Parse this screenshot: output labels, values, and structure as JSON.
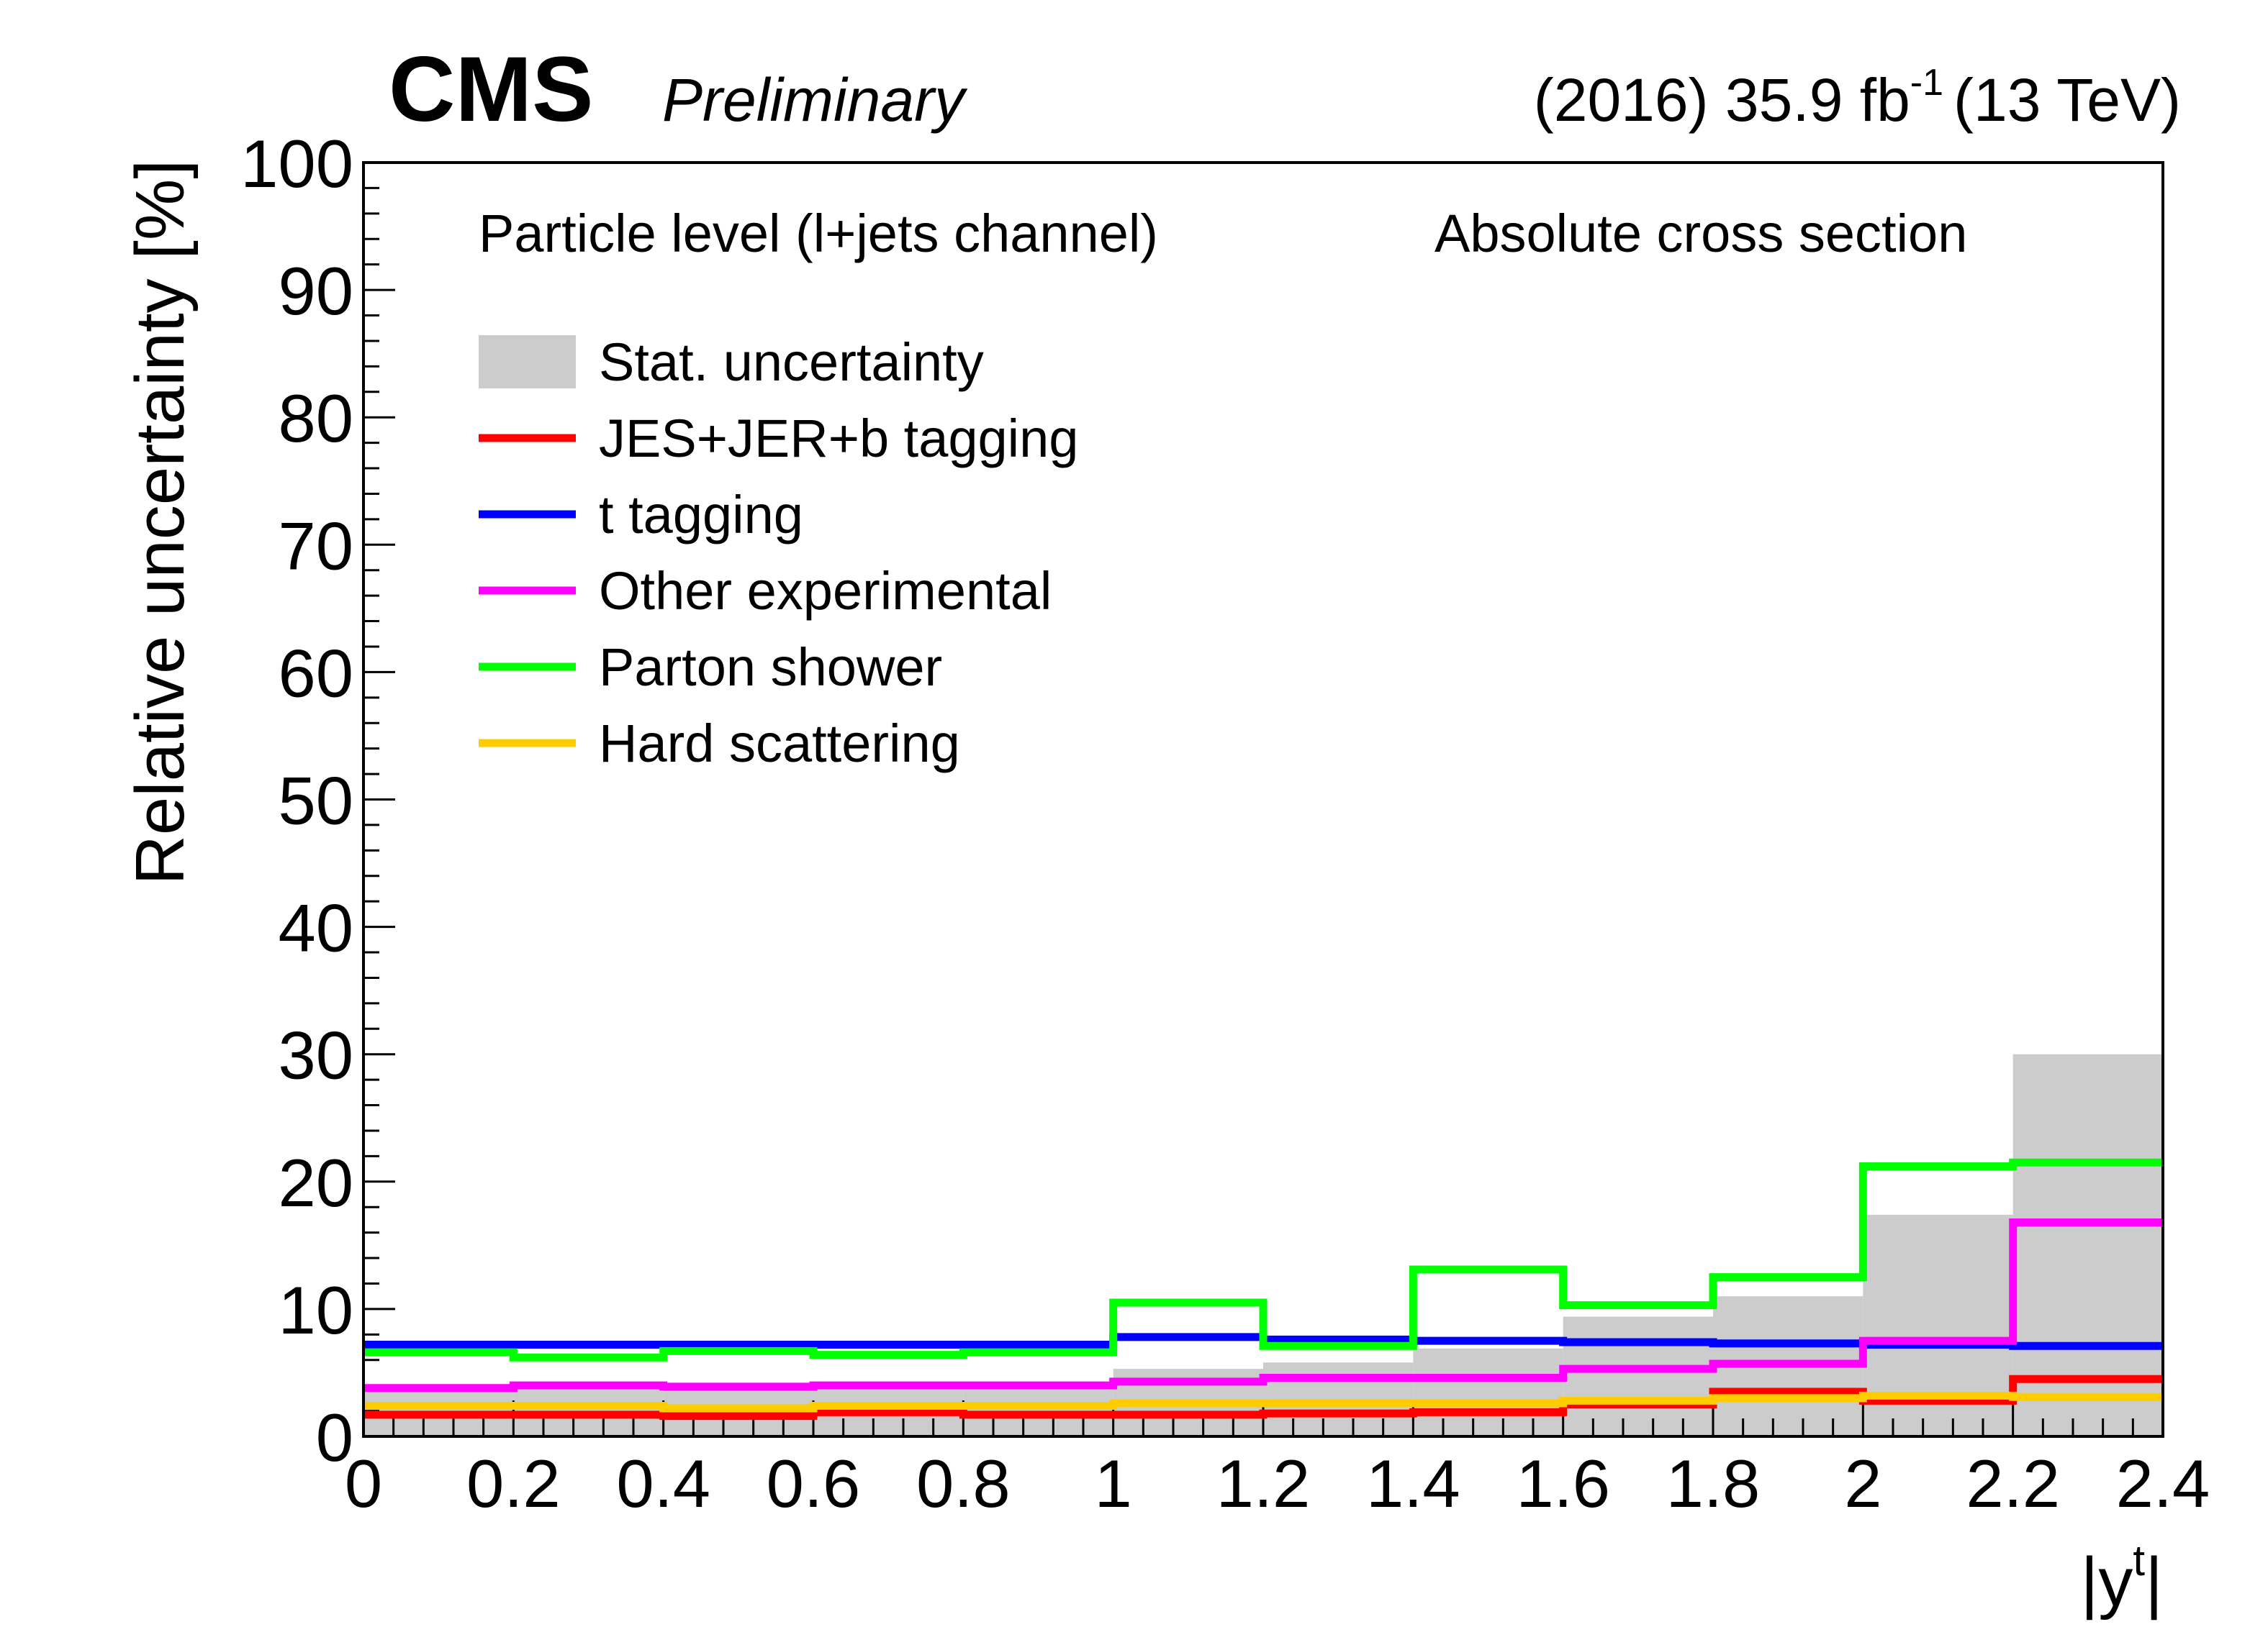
{
  "header": {
    "experiment": "CMS",
    "status": "Preliminary",
    "lumi_prefix": "(2016) 35.9 fb",
    "lumi_exp": "-1",
    "energy": "(13 TeV)"
  },
  "annotations": {
    "left": "Particle level (l+jets channel)",
    "right": "Absolute cross section"
  },
  "chart_data": {
    "type": "line",
    "style": "step histogram",
    "ylabel": "Relative uncertainty [%]",
    "xlabel_base": "|y",
    "xlabel_sup": "t",
    "xlabel_end": "|",
    "xlim": [
      0,
      2.4
    ],
    "ylim": [
      0,
      100
    ],
    "x_ticks": [
      "0",
      "0.2",
      "0.4",
      "0.6",
      "0.8",
      "1",
      "1.2",
      "1.4",
      "1.6",
      "1.8",
      "2",
      "2.2",
      "2.4"
    ],
    "y_ticks": [
      "0",
      "10",
      "20",
      "30",
      "40",
      "50",
      "60",
      "70",
      "80",
      "90",
      "100"
    ],
    "bin_edges": [
      0,
      0.2,
      0.4,
      0.6,
      0.8,
      1.0,
      1.2,
      1.4,
      1.6,
      1.8,
      2.0,
      2.2,
      2.4
    ],
    "legend_position": "top-left",
    "series": [
      {
        "name": "Stat. uncertainty",
        "kind": "fill",
        "color": "#cccccc",
        "values": [
          4.0,
          4.0,
          4.0,
          4.0,
          4.0,
          5.3,
          5.8,
          6.9,
          9.4,
          11.0,
          17.4,
          30.0
        ]
      },
      {
        "name": "JES+JER+b tagging",
        "kind": "line",
        "color": "#ff0000",
        "values": [
          1.7,
          1.7,
          1.6,
          1.9,
          1.7,
          1.7,
          1.8,
          1.9,
          2.5,
          3.5,
          2.8,
          4.5
        ]
      },
      {
        "name": "t tagging",
        "kind": "line",
        "color": "#0000ff",
        "values": [
          7.2,
          7.2,
          7.2,
          7.2,
          7.2,
          7.8,
          7.6,
          7.5,
          7.4,
          7.3,
          7.2,
          7.1
        ]
      },
      {
        "name": "Other experimental",
        "kind": "line",
        "color": "#ff00ff",
        "values": [
          3.8,
          4.0,
          3.9,
          4.0,
          4.0,
          4.3,
          4.6,
          4.6,
          5.3,
          5.7,
          7.5,
          16.8
        ]
      },
      {
        "name": "Parton shower",
        "kind": "line",
        "color": "#00ff00",
        "values": [
          6.6,
          6.2,
          6.7,
          6.4,
          6.6,
          10.5,
          7.1,
          13.1,
          10.3,
          12.5,
          21.2,
          21.5
        ]
      },
      {
        "name": "Hard scattering",
        "kind": "line",
        "color": "#ffcc00",
        "values": [
          2.4,
          2.4,
          2.2,
          2.4,
          2.4,
          2.6,
          2.6,
          2.6,
          2.8,
          3.0,
          3.2,
          3.1
        ]
      }
    ]
  }
}
